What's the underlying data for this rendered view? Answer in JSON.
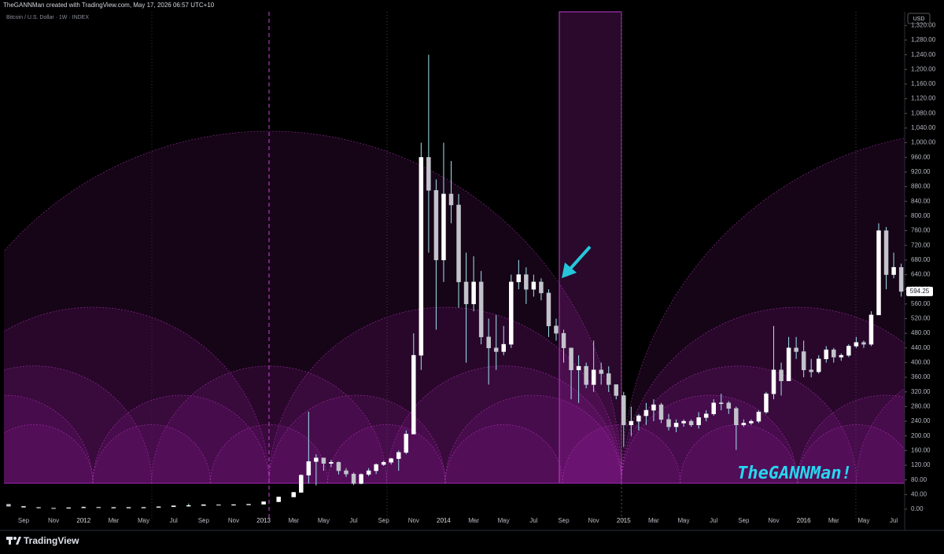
{
  "chart_data": {
    "type": "candlestick",
    "header": "TheGANNMan created with TradingView.com, May 17, 2026 06:57 UTC+10",
    "title": "Bitcoin / U.S. Dollar · 1W · INDEX",
    "currency": "USD",
    "annotation": "TheGANNMan!",
    "brand": "TradingView",
    "up_color": "#ffffff",
    "down_color": "#c3c3cc",
    "wick_color": "#9fe6ef",
    "last_price": 594.25,
    "candles": {
      "x": [
        -1,
        0,
        1,
        2,
        3,
        4,
        5,
        6,
        7,
        8,
        9,
        10,
        11,
        12,
        13,
        14,
        15,
        16,
        17,
        18,
        18.5,
        19,
        19.5,
        20,
        20.5,
        21,
        21.5,
        22,
        22.5,
        23,
        23.5,
        24,
        24.5,
        25,
        25.5,
        26,
        26.5,
        27,
        27.5,
        28,
        28.5,
        29,
        29.5,
        30,
        30.5,
        31,
        31.5,
        32,
        32.5,
        33,
        33.5,
        34,
        34.5,
        35,
        35.5,
        36,
        36.5,
        37,
        37.5,
        38,
        38.5,
        39,
        39.5,
        40,
        40.5,
        41,
        41.5,
        42,
        42.5,
        43,
        43.5,
        44,
        44.5,
        45,
        45.5,
        46,
        46.5,
        47,
        47.5,
        48,
        48.5,
        49,
        49.5,
        50,
        50.5,
        51,
        51.5,
        52,
        52.5,
        53,
        53.5,
        54,
        54.5,
        55,
        55.5,
        56,
        56.5,
        57,
        57.5,
        58,
        58.5
      ],
      "open": [
        13.5,
        8.2,
        5.1,
        3.2,
        3.0,
        4.2,
        5.5,
        4.9,
        4.9,
        5.0,
        5.1,
        6.7,
        9.4,
        10.1,
        12.4,
        11.2,
        12.6,
        13.5,
        20.4,
        33.4,
        46,
        93,
        130,
        140,
        125,
        128,
        105,
        96,
        70,
        95,
        105,
        122,
        128,
        138,
        155,
        205,
        420,
        960,
        870,
        680,
        860,
        830,
        620,
        560,
        620,
        470,
        440,
        430,
        450,
        620,
        640,
        600,
        620,
        590,
        500,
        480,
        440,
        380,
        390,
        340,
        380,
        370,
        340,
        310,
        230,
        240,
        255,
        270,
        285,
        245,
        225,
        235,
        240,
        230,
        250,
        260,
        290,
        290,
        275,
        230,
        235,
        240,
        265,
        315,
        380,
        350,
        440,
        430,
        380,
        375,
        410,
        435,
        415,
        420,
        445,
        455,
        450,
        530,
        760,
        640,
        660
      ],
      "high": [
        14,
        8.5,
        5.3,
        3.7,
        4.3,
        7.2,
        6.3,
        5.4,
        5.3,
        5.2,
        6.7,
        9.5,
        15.4,
        12.9,
        12.9,
        12.9,
        13.7,
        20.4,
        33.6,
        47,
        95,
        266,
        150,
        140,
        135,
        130,
        112,
        100,
        98,
        112,
        125,
        132,
        140,
        160,
        215,
        480,
        1000,
        1240,
        900,
        1000,
        950,
        860,
        700,
        690,
        650,
        520,
        530,
        500,
        640,
        680,
        660,
        640,
        630,
        600,
        520,
        490,
        440,
        420,
        400,
        460,
        400,
        390,
        340,
        320,
        280,
        260,
        290,
        300,
        290,
        260,
        245,
        245,
        245,
        265,
        270,
        300,
        315,
        295,
        280,
        245,
        245,
        270,
        320,
        500,
        400,
        470,
        470,
        460,
        410,
        420,
        445,
        440,
        425,
        450,
        470,
        460,
        540,
        780,
        770,
        700,
        670
      ],
      "low": [
        7.5,
        4.8,
        2.2,
        2.3,
        2.9,
        4.2,
        4.3,
        4.7,
        4.8,
        4.9,
        5.1,
        6.5,
        7.1,
        9.9,
        10.4,
        10.0,
        12.5,
        13.2,
        19.6,
        33,
        45,
        70,
        65,
        105,
        115,
        95,
        88,
        66,
        68,
        90,
        96,
        118,
        122,
        105,
        150,
        205,
        380,
        700,
        490,
        620,
        780,
        550,
        400,
        540,
        450,
        340,
        380,
        420,
        440,
        600,
        560,
        580,
        570,
        470,
        460,
        400,
        300,
        290,
        330,
        320,
        340,
        320,
        300,
        170,
        200,
        215,
        230,
        240,
        235,
        215,
        210,
        225,
        225,
        220,
        240,
        255,
        270,
        260,
        162,
        225,
        230,
        235,
        260,
        300,
        310,
        350,
        410,
        360,
        360,
        370,
        400,
        400,
        405,
        415,
        440,
        440,
        445,
        530,
        600,
        630,
        580
      ],
      "close": [
        8.2,
        5.1,
        3.2,
        3.0,
        4.2,
        5.5,
        4.9,
        4.9,
        5.0,
        5.1,
        6.7,
        9.4,
        10.1,
        12.4,
        11.2,
        12.6,
        13.5,
        20.4,
        33.4,
        46,
        93,
        130,
        140,
        125,
        128,
        105,
        96,
        70,
        95,
        105,
        122,
        128,
        138,
        155,
        205,
        420,
        960,
        870,
        680,
        860,
        830,
        620,
        560,
        620,
        470,
        440,
        430,
        450,
        620,
        640,
        600,
        620,
        590,
        500,
        480,
        440,
        380,
        390,
        340,
        380,
        370,
        340,
        310,
        230,
        240,
        255,
        270,
        285,
        245,
        225,
        235,
        240,
        230,
        250,
        260,
        290,
        290,
        275,
        230,
        235,
        240,
        265,
        315,
        380,
        350,
        440,
        430,
        380,
        375,
        410,
        435,
        415,
        420,
        445,
        455,
        450,
        530,
        760,
        640,
        660,
        594.25
      ]
    },
    "xlim": [
      -1.31,
      58.73
    ],
    "xticks": [
      {
        "value": 0,
        "label": "Sep"
      },
      {
        "value": 2,
        "label": "Nov"
      },
      {
        "value": 4,
        "label": "2012"
      },
      {
        "value": 6,
        "label": "Mar"
      },
      {
        "value": 8,
        "label": "May"
      },
      {
        "value": 10,
        "label": "Jul"
      },
      {
        "value": 12,
        "label": "Sep"
      },
      {
        "value": 14,
        "label": "Nov"
      },
      {
        "value": 16,
        "label": "2013"
      },
      {
        "value": 18,
        "label": "Mar"
      },
      {
        "value": 20,
        "label": "May"
      },
      {
        "value": 22,
        "label": "Jul"
      },
      {
        "value": 24,
        "label": "Sep"
      },
      {
        "value": 26,
        "label": "Nov"
      },
      {
        "value": 28,
        "label": "2014"
      },
      {
        "value": 30,
        "label": "Mar"
      },
      {
        "value": 32,
        "label": "May"
      },
      {
        "value": 34,
        "label": "Jul"
      },
      {
        "value": 36,
        "label": "Sep"
      },
      {
        "value": 38,
        "label": "Nov"
      },
      {
        "value": 40,
        "label": "2015"
      },
      {
        "value": 42,
        "label": "Mar"
      },
      {
        "value": 44,
        "label": "May"
      },
      {
        "value": 46,
        "label": "Jul"
      },
      {
        "value": 48,
        "label": "Sep"
      },
      {
        "value": 50,
        "label": "Nov"
      },
      {
        "value": 52,
        "label": "2016"
      },
      {
        "value": 54,
        "label": "Mar"
      },
      {
        "value": 56,
        "label": "May"
      },
      {
        "value": 58,
        "label": "Jul"
      }
    ],
    "ylim": [
      -25.7,
      1357.2
    ],
    "yticks": [
      {
        "value": 0,
        "label": "0.00"
      },
      {
        "value": 40,
        "label": "40.00"
      },
      {
        "value": 80,
        "label": "80.00"
      },
      {
        "value": 120,
        "label": "120.00"
      },
      {
        "value": 160,
        "label": "160.00"
      },
      {
        "value": 200,
        "label": "200.00"
      },
      {
        "value": 240,
        "label": "240.00"
      },
      {
        "value": 280,
        "label": "280.00"
      },
      {
        "value": 320,
        "label": "320.00"
      },
      {
        "value": 360,
        "label": "360.00"
      },
      {
        "value": 400,
        "label": "400.00"
      },
      {
        "value": 440,
        "label": "440.00"
      },
      {
        "value": 480,
        "label": "480.00"
      },
      {
        "value": 520,
        "label": "520.00"
      },
      {
        "value": 560,
        "label": "560.00"
      },
      {
        "value": 600,
        "label": "600.00"
      },
      {
        "value": 640,
        "label": "640.00"
      },
      {
        "value": 680,
        "label": "680.00"
      },
      {
        "value": 720,
        "label": "720.00"
      },
      {
        "value": 760,
        "label": "760.00"
      },
      {
        "value": 800,
        "label": "800.00"
      },
      {
        "value": 840,
        "label": "840.00"
      },
      {
        "value": 880,
        "label": "880.00"
      },
      {
        "value": 920,
        "label": "920.00"
      },
      {
        "value": 960,
        "label": "960.00"
      },
      {
        "value": 1000,
        "label": "1,000.00"
      },
      {
        "value": 1040,
        "label": "1,040.00"
      },
      {
        "value": 1080,
        "label": "1,080.00"
      },
      {
        "value": 1120,
        "label": "1,120.00"
      },
      {
        "value": 1160,
        "label": "1,160.00"
      },
      {
        "value": 1200,
        "label": "1,200.00"
      },
      {
        "value": 1240,
        "label": "1,240.00"
      },
      {
        "value": 1280,
        "label": "1,280.00"
      },
      {
        "value": 1320,
        "label": "1,320.00"
      }
    ]
  }
}
